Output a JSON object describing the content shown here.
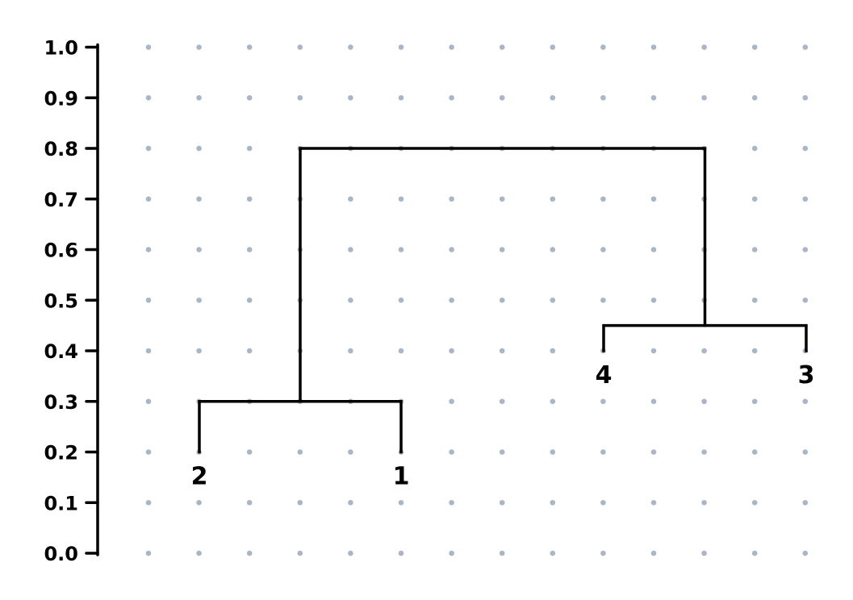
{
  "chart_data": {
    "type": "dendrogram",
    "yaxis": {
      "ticks": [
        0.0,
        0.1,
        0.2,
        0.3,
        0.4,
        0.5,
        0.6,
        0.7,
        0.8,
        0.9,
        1.0
      ],
      "tick_labels": [
        "0.0",
        "0.1",
        "0.2",
        "0.3",
        "0.4",
        "0.5",
        "0.6",
        "0.7",
        "0.8",
        "0.9",
        "1.0"
      ],
      "range": [
        0,
        1.0
      ]
    },
    "grid": "dots",
    "colors": {
      "lines": "#000000",
      "grid_dots": "#aab6c8"
    },
    "leaves": [
      {
        "label": "2",
        "height": 0.2
      },
      {
        "label": "1",
        "height": 0.2
      },
      {
        "label": "4",
        "height": 0.4
      },
      {
        "label": "3",
        "height": 0.4
      }
    ],
    "merges": [
      {
        "left": "2",
        "right": "1",
        "height": 0.3
      },
      {
        "left": "4",
        "right": "3",
        "height": 0.45
      },
      {
        "left": "2+1",
        "right": "4+3",
        "height": 0.8
      }
    ]
  }
}
